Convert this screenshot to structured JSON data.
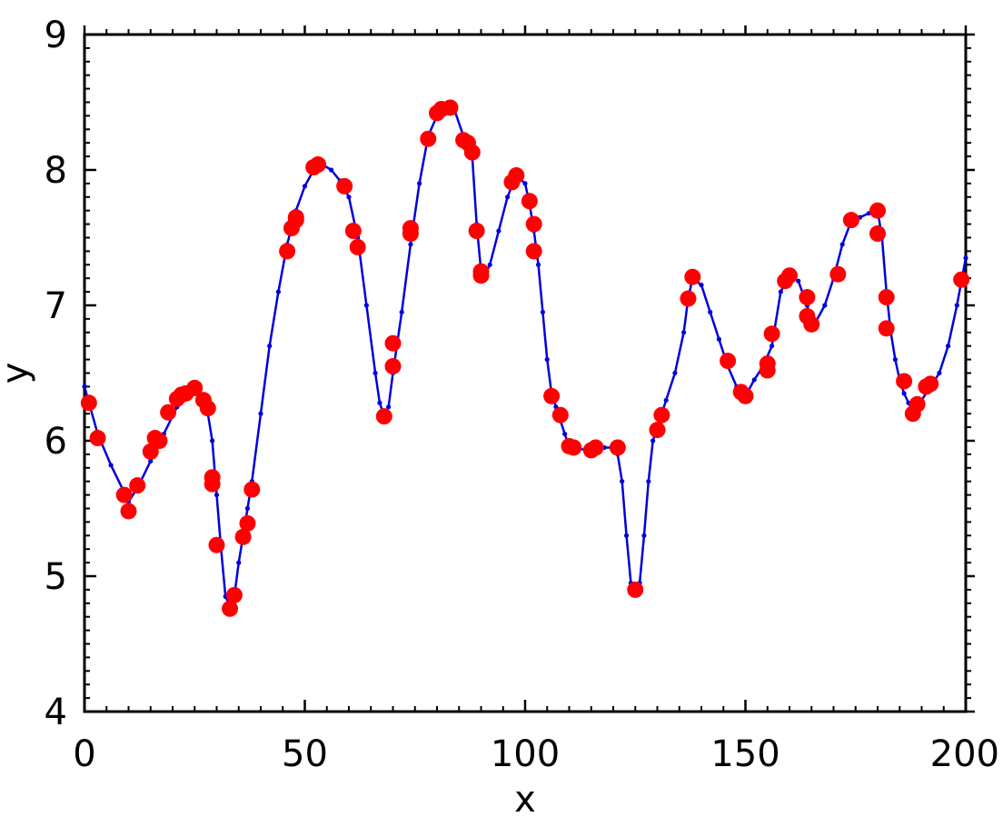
{
  "chart_data": {
    "type": "scatter",
    "xlabel": "x",
    "ylabel": "y",
    "xlim": [
      0,
      200
    ],
    "ylim": [
      4,
      9
    ],
    "xticks": [
      0,
      50,
      100,
      150,
      200
    ],
    "yticks": [
      4,
      5,
      6,
      7,
      8,
      9
    ],
    "grid": false,
    "legend": "none",
    "series": [
      {
        "kind": "scatter",
        "color": "#ff0000",
        "x": [
          1,
          3,
          9,
          10,
          12,
          15,
          16,
          17,
          19,
          21,
          22,
          23,
          25,
          27,
          28,
          29,
          29,
          30,
          33,
          34,
          36,
          37,
          38,
          46,
          47,
          48,
          48,
          52,
          53,
          59,
          61,
          62,
          68,
          70,
          70,
          74,
          74,
          78,
          80,
          81,
          83,
          86,
          87,
          88,
          89,
          90,
          90,
          97,
          98,
          101,
          102,
          102,
          106,
          108,
          110,
          111,
          115,
          116,
          121,
          125,
          130,
          131,
          137,
          138,
          146,
          149,
          150,
          155,
          155,
          156,
          159,
          160,
          164,
          164,
          165,
          171,
          174,
          180,
          180,
          182,
          182,
          186,
          188,
          189,
          191,
          192,
          199
        ],
        "y": [
          6.28,
          6.02,
          5.6,
          5.48,
          5.67,
          5.92,
          6.02,
          6.0,
          6.21,
          6.31,
          6.34,
          6.35,
          6.39,
          6.3,
          6.24,
          5.73,
          5.68,
          5.23,
          4.76,
          4.86,
          5.29,
          5.39,
          5.64,
          7.4,
          7.57,
          7.63,
          7.65,
          8.02,
          8.04,
          7.88,
          7.55,
          7.43,
          6.18,
          6.55,
          6.72,
          7.53,
          7.57,
          8.23,
          8.42,
          8.45,
          8.46,
          8.22,
          8.2,
          8.13,
          7.55,
          7.25,
          7.22,
          7.91,
          7.96,
          7.77,
          7.6,
          7.4,
          6.33,
          6.19,
          5.96,
          5.95,
          5.93,
          5.95,
          5.95,
          4.9,
          6.08,
          6.19,
          7.05,
          7.21,
          6.59,
          6.36,
          6.33,
          6.52,
          6.57,
          6.79,
          7.18,
          7.22,
          7.06,
          6.92,
          6.86,
          7.23,
          7.63,
          7.7,
          7.53,
          7.06,
          6.83,
          6.44,
          6.2,
          6.27,
          6.4,
          6.42,
          7.19
        ]
      },
      {
        "kind": "line",
        "color": "#0000dd",
        "x": [
          0,
          3,
          6,
          9,
          10,
          12,
          15,
          18,
          21,
          23,
          25,
          26,
          27,
          28,
          29,
          30,
          31,
          32,
          33,
          34,
          35,
          36,
          37,
          38,
          40,
          42,
          44,
          46,
          48,
          50,
          52,
          53,
          54,
          56,
          58,
          60,
          62,
          64,
          66,
          67,
          68,
          69,
          70,
          72,
          74,
          76,
          78,
          80,
          81,
          82,
          83,
          84,
          86,
          87,
          88,
          89,
          90,
          91,
          92,
          94,
          96,
          98,
          100,
          101,
          102,
          103,
          104,
          105,
          106,
          107,
          108,
          109,
          110,
          112,
          115,
          118,
          120,
          121,
          122,
          123,
          124,
          125,
          126,
          127,
          128,
          129,
          130,
          131,
          132,
          134,
          136,
          137,
          138,
          140,
          142,
          144,
          146,
          148,
          150,
          152,
          154,
          156,
          158,
          160,
          162,
          164,
          165,
          166,
          168,
          170,
          172,
          174,
          176,
          178,
          180,
          181,
          182,
          183,
          184,
          185,
          186,
          187,
          188,
          189,
          190,
          192,
          194,
          196,
          198,
          200
        ],
        "y": [
          6.4,
          6.05,
          5.82,
          5.62,
          5.55,
          5.65,
          5.85,
          6.05,
          6.25,
          6.32,
          6.38,
          6.38,
          6.3,
          6.2,
          6.0,
          5.6,
          5.2,
          4.85,
          4.78,
          4.85,
          5.1,
          5.3,
          5.5,
          5.7,
          6.2,
          6.7,
          7.1,
          7.45,
          7.7,
          7.88,
          8.0,
          8.03,
          8.04,
          8.0,
          7.92,
          7.8,
          7.5,
          7.0,
          6.5,
          6.28,
          6.18,
          6.25,
          6.5,
          6.95,
          7.45,
          7.9,
          8.25,
          8.4,
          8.44,
          8.45,
          8.46,
          8.44,
          8.25,
          8.18,
          8.1,
          7.6,
          7.25,
          7.23,
          7.3,
          7.55,
          7.8,
          7.96,
          7.9,
          7.75,
          7.55,
          7.3,
          6.95,
          6.6,
          6.35,
          6.25,
          6.15,
          6.05,
          5.96,
          5.94,
          5.93,
          5.95,
          5.95,
          5.9,
          5.7,
          5.3,
          4.95,
          4.9,
          4.95,
          5.3,
          5.7,
          6.0,
          6.1,
          6.2,
          6.3,
          6.5,
          6.8,
          7.05,
          7.2,
          7.15,
          6.95,
          6.75,
          6.55,
          6.4,
          6.33,
          6.45,
          6.55,
          6.7,
          7.1,
          7.22,
          7.18,
          7.0,
          6.88,
          6.88,
          7.0,
          7.2,
          7.45,
          7.62,
          7.65,
          7.68,
          7.7,
          7.5,
          7.1,
          6.8,
          6.6,
          6.45,
          6.35,
          6.28,
          6.22,
          6.24,
          6.3,
          6.4,
          6.5,
          6.7,
          7.0,
          7.35
        ]
      }
    ]
  }
}
